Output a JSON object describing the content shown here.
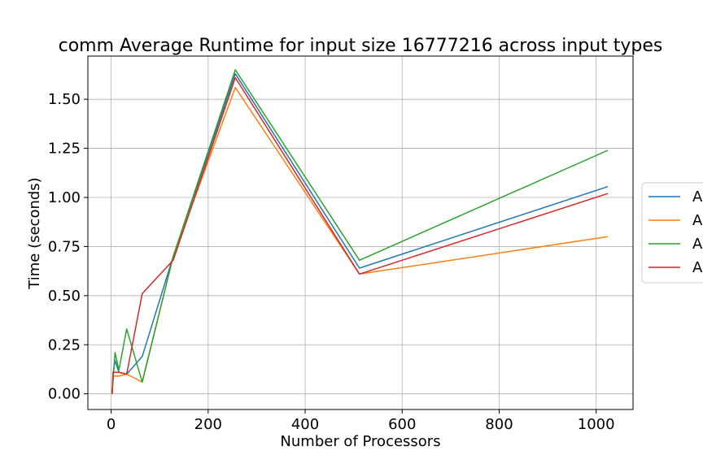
{
  "chart_data": {
    "type": "line",
    "title": "comm Average Runtime for input size 16777216 across input types",
    "xlabel": "Number of Processors",
    "ylabel": "Time (seconds)",
    "xlim": [
      -48,
      1076
    ],
    "ylim": [
      -0.08,
      1.72
    ],
    "xticks": [
      0,
      200,
      400,
      600,
      800,
      1000
    ],
    "xtick_labels": [
      "0",
      "200",
      "400",
      "600",
      "800",
      "1000"
    ],
    "yticks": [
      0.0,
      0.25,
      0.5,
      0.75,
      1.0,
      1.25,
      1.5
    ],
    "ytick_labels": [
      "0.00",
      "0.25",
      "0.50",
      "0.75",
      "1.00",
      "1.25",
      "1.50"
    ],
    "grid": true,
    "legend_position": "right (outside, partially clipped)",
    "series": [
      {
        "name": "A",
        "color": "#1f77b4",
        "x": [
          2,
          4,
          8,
          16,
          32,
          64,
          128,
          256,
          512,
          1024
        ],
        "y": [
          0.0,
          0.1,
          0.17,
          0.11,
          0.1,
          0.19,
          0.7,
          1.63,
          0.64,
          1.055
        ]
      },
      {
        "name": "A",
        "color": "#ff7f0e",
        "x": [
          2,
          4,
          8,
          16,
          32,
          64,
          128,
          256,
          512,
          1024
        ],
        "y": [
          0.0,
          0.09,
          0.09,
          0.09,
          0.1,
          0.06,
          0.7,
          1.56,
          0.61,
          0.8
        ]
      },
      {
        "name": "A",
        "color": "#2ca02c",
        "x": [
          2,
          4,
          8,
          16,
          32,
          64,
          128,
          256,
          512,
          1024
        ],
        "y": [
          0.0,
          0.07,
          0.21,
          0.12,
          0.33,
          0.06,
          0.7,
          1.65,
          0.68,
          1.24
        ]
      },
      {
        "name": "A",
        "color": "#d62728",
        "x": [
          2,
          4,
          8,
          16,
          32,
          64,
          128,
          256,
          512,
          1024
        ],
        "y": [
          0.0,
          0.11,
          0.11,
          0.11,
          0.1,
          0.51,
          0.68,
          1.61,
          0.61,
          1.02
        ]
      }
    ]
  }
}
